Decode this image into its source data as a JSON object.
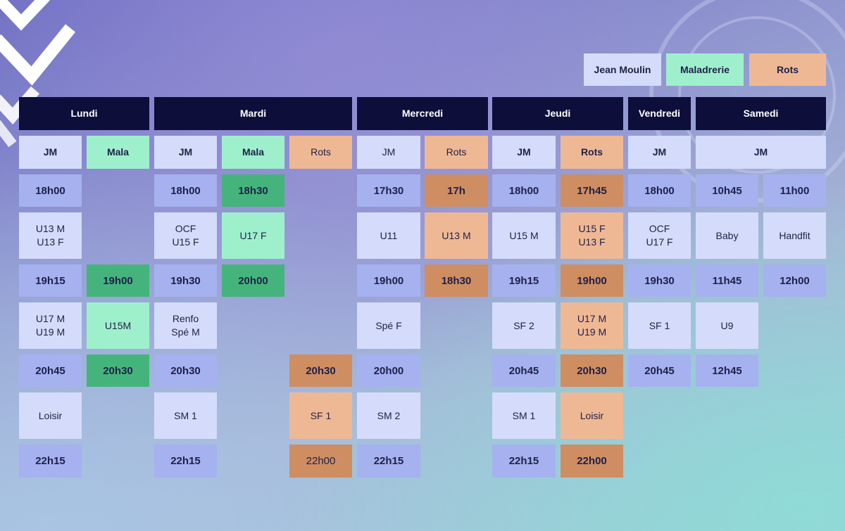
{
  "legend": {
    "jean_moulin": "Jean Moulin",
    "maladrerie": "Maladrerie",
    "rots": "Rots"
  },
  "days": [
    "Lundi",
    "Mardi",
    "Mercredi",
    "Jeudi",
    "Vendredi",
    "Samedi"
  ],
  "venues": {
    "jm": "JM",
    "mala": "Mala",
    "rots": "Rots"
  },
  "lundi": {
    "jm": {
      "t1": "18h00",
      "s1": "U13 M\nU13 F",
      "t2": "19h15",
      "s2": "U17 M\nU19 M",
      "t3": "20h45",
      "s3": "Loisir",
      "t4": "22h15"
    },
    "mala": {
      "t1": "19h00",
      "s1": "U15M",
      "t2": "20h30"
    }
  },
  "mardi": {
    "jm": {
      "t1": "18h00",
      "s1": "OCF\nU15 F",
      "t2": "19h30",
      "s2": "Renfo\nSpé M",
      "t3": "20h30",
      "s3": "SM 1",
      "t4": "22h15"
    },
    "mala": {
      "t1": "18h30",
      "s1": "U17 F",
      "t2": "20h00"
    },
    "rots": {
      "t1": "20h30",
      "s1": "SF 1",
      "t2": "22h00"
    }
  },
  "mercredi": {
    "jm": {
      "t1": "17h30",
      "s1": "U11",
      "t2": "19h00",
      "s2": "Spé F",
      "t3": "20h00",
      "s3": "SM 2",
      "t4": "22h15"
    },
    "rots": {
      "t1": "17h",
      "s1": "U13 M",
      "t2": "18h30"
    }
  },
  "jeudi": {
    "jm": {
      "t1": "18h00",
      "s1": "U15 M",
      "t2": "19h15",
      "s2": "SF 2",
      "t3": "20h45",
      "s3": "SM 1",
      "t4": "22h15"
    },
    "rots": {
      "t1": "17h45",
      "s1": "U15 F\nU13 F",
      "t2": "19h00",
      "s2": "U17 M\nU19 M",
      "t3": "20h30",
      "s3": "Loisir",
      "t4": "22h00"
    }
  },
  "vendredi": {
    "jm": {
      "t1": "18h00",
      "s1": "OCF\nU17 F",
      "t2": "19h30",
      "s2": "SF 1",
      "t3": "20h45"
    }
  },
  "samedi": {
    "jm_a": {
      "t1": "10h45",
      "s1": "Baby",
      "t2": "11h45",
      "s2": "U9",
      "t3": "12h45"
    },
    "jm_b": {
      "t1": "11h00",
      "s1": "Handfit",
      "t2": "12h00"
    }
  },
  "colors": {
    "header": "#0d0f3a",
    "jm_slot": "#d5dbfb",
    "jm_time": "#a6b1ef",
    "mala_slot": "#9ef0cc",
    "mala_time": "#45b47c",
    "rots_slot": "#efb894",
    "rots_time": "#cf8d62"
  }
}
